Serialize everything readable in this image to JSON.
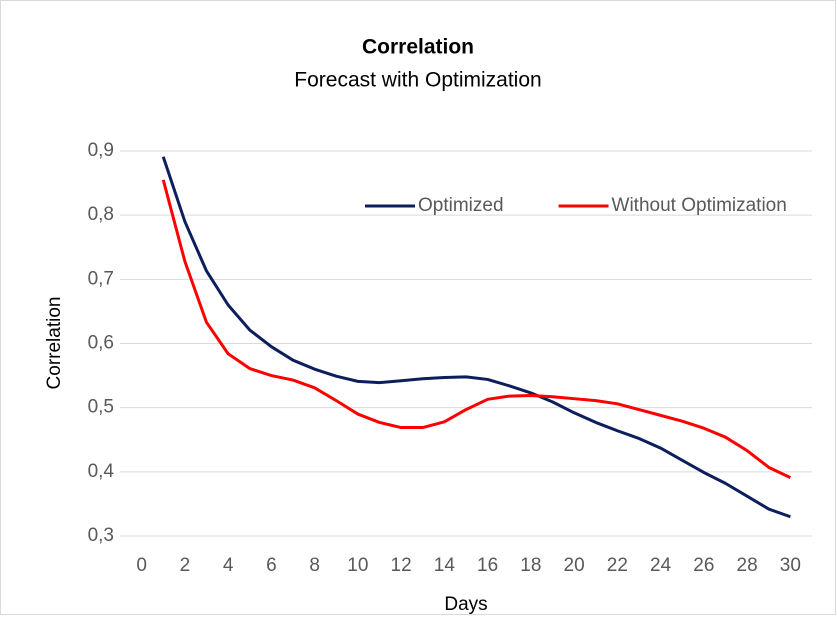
{
  "chart_data": {
    "type": "line",
    "title": "Correlation",
    "subtitle": "Forecast with Optimization",
    "x_label": "Days",
    "y_label": "Correlation",
    "x": [
      1,
      2,
      3,
      4,
      5,
      6,
      7,
      8,
      9,
      10,
      11,
      12,
      13,
      14,
      15,
      16,
      17,
      18,
      19,
      20,
      21,
      22,
      23,
      24,
      25,
      26,
      27,
      28,
      29,
      30
    ],
    "series": [
      {
        "name": "Optimized",
        "color": "#0c1f5c",
        "values": [
          0.891,
          0.79,
          0.713,
          0.66,
          0.621,
          0.595,
          0.574,
          0.56,
          0.549,
          0.541,
          0.539,
          0.542,
          0.545,
          0.547,
          0.548,
          0.544,
          0.534,
          0.523,
          0.509,
          0.492,
          0.477,
          0.464,
          0.452,
          0.437,
          0.418,
          0.399,
          0.382,
          0.362,
          0.342,
          0.33
        ]
      },
      {
        "name": "Without Optimization",
        "color": "#ff0000",
        "values": [
          0.855,
          0.728,
          0.633,
          0.584,
          0.561,
          0.55,
          0.543,
          0.531,
          0.511,
          0.49,
          0.477,
          0.469,
          0.469,
          0.478,
          0.497,
          0.513,
          0.518,
          0.519,
          0.517,
          0.514,
          0.511,
          0.506,
          0.497,
          0.488,
          0.479,
          0.468,
          0.454,
          0.433,
          0.407,
          0.391
        ]
      }
    ],
    "xlim": [
      -1,
      31
    ],
    "xticks": [
      0,
      2,
      4,
      6,
      8,
      10,
      12,
      14,
      16,
      18,
      20,
      22,
      24,
      26,
      28,
      30
    ],
    "ylim": [
      0.3,
      0.9
    ],
    "yticks": [
      {
        "value": 0.3,
        "label": "0,3"
      },
      {
        "value": 0.4,
        "label": "0,4"
      },
      {
        "value": 0.5,
        "label": "0,5"
      },
      {
        "value": 0.6,
        "label": "0,6"
      },
      {
        "value": 0.7,
        "label": "0,7"
      },
      {
        "value": 0.8,
        "label": "0,8"
      },
      {
        "value": 0.9,
        "label": "0,9"
      }
    ],
    "grid": true,
    "legend": "top-right"
  }
}
